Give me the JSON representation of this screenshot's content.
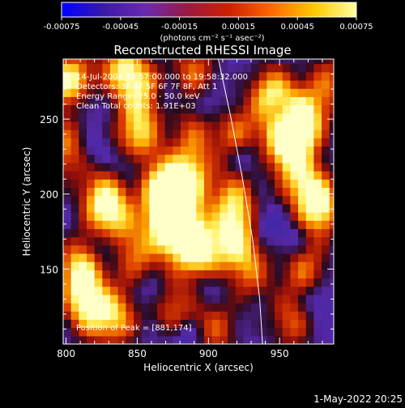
{
  "colorbar": {
    "tick_labels": [
      "-0.00075",
      "-0.00045",
      "-0.00015",
      "0.00015",
      "0.00045",
      "0.00075"
    ],
    "tick_values": [
      -0.00075,
      -0.00045,
      -0.00015,
      0.00015,
      0.00045,
      0.00075
    ],
    "range": [
      -0.00075,
      0.00075
    ],
    "unit_label": "(photons cm⁻² s⁻¹ asec⁻²)",
    "colormap": [
      "#0000ff",
      "#3a1aa8",
      "#6a2ab0",
      "#9a1a40",
      "#d02000",
      "#ff6a00",
      "#ffc800",
      "#ffffa0"
    ]
  },
  "chart_data": {
    "type": "heatmap",
    "title": "Reconstructed RHESSI Image",
    "xlabel": "Heliocentric X (arcsec)",
    "ylabel": "Heliocentric Y (arcsec)",
    "xlim": [
      798,
      988
    ],
    "ylim": [
      100,
      290
    ],
    "x_ticks": [
      800,
      850,
      900,
      950
    ],
    "y_ticks": [
      150,
      200,
      250
    ],
    "x_tick_labels": [
      "800",
      "850",
      "900",
      "950"
    ],
    "y_tick_labels": [
      "150",
      "200",
      "250"
    ],
    "info": [
      "14-Jul-2004 19:57:00.000 to 19:58:32.000",
      "Detectors: 3F 4F 5F 6F 7F 8F, Att 1",
      "Energy Range: 25.0 - 50.0 keV",
      "Clean    Total counts: 1.91E+03"
    ],
    "peak_label": "Position of Peak = [881,174]",
    "peak": [
      881,
      174
    ],
    "limb": [
      [
        907,
        290
      ],
      [
        916,
        250
      ],
      [
        924,
        210
      ],
      [
        931,
        170
      ],
      [
        936,
        130
      ],
      [
        938,
        100
      ]
    ],
    "blobs": [
      {
        "x": 803,
        "y": 275,
        "a": 0.95
      },
      {
        "x": 840,
        "y": 284,
        "a": 0.8
      },
      {
        "x": 855,
        "y": 268,
        "a": 0.6
      },
      {
        "x": 890,
        "y": 282,
        "a": 0.55
      },
      {
        "x": 850,
        "y": 240,
        "a": 0.75
      },
      {
        "x": 868,
        "y": 205,
        "a": 0.85
      },
      {
        "x": 887,
        "y": 210,
        "a": 0.8
      },
      {
        "x": 881,
        "y": 174,
        "a": 1.0
      },
      {
        "x": 872,
        "y": 185,
        "a": 0.85
      },
      {
        "x": 895,
        "y": 160,
        "a": 0.75
      },
      {
        "x": 810,
        "y": 150,
        "a": 0.85
      },
      {
        "x": 815,
        "y": 125,
        "a": 0.8
      },
      {
        "x": 835,
        "y": 118,
        "a": 0.7
      },
      {
        "x": 825,
        "y": 197,
        "a": 0.75
      },
      {
        "x": 835,
        "y": 185,
        "a": 0.55
      },
      {
        "x": 850,
        "y": 160,
        "a": 0.55
      },
      {
        "x": 905,
        "y": 110,
        "a": 0.5
      },
      {
        "x": 875,
        "y": 125,
        "a": 0.5
      },
      {
        "x": 918,
        "y": 195,
        "a": 0.7
      },
      {
        "x": 918,
        "y": 170,
        "a": 0.75
      },
      {
        "x": 930,
        "y": 148,
        "a": 0.5
      },
      {
        "x": 920,
        "y": 240,
        "a": 0.55
      },
      {
        "x": 945,
        "y": 265,
        "a": 0.9
      },
      {
        "x": 955,
        "y": 235,
        "a": 1.0
      },
      {
        "x": 968,
        "y": 250,
        "a": 0.85
      },
      {
        "x": 978,
        "y": 192,
        "a": 0.95
      },
      {
        "x": 965,
        "y": 210,
        "a": 0.6
      },
      {
        "x": 968,
        "y": 150,
        "a": 0.55
      },
      {
        "x": 958,
        "y": 115,
        "a": 0.5
      },
      {
        "x": 985,
        "y": 275,
        "a": 0.5
      },
      {
        "x": 890,
        "y": 240,
        "a": 0.45
      },
      {
        "x": 800,
        "y": 230,
        "a": 0.6
      }
    ],
    "dips": [
      {
        "x": 950,
        "y": 255,
        "a": 0.9
      },
      {
        "x": 812,
        "y": 260,
        "a": 0.7
      },
      {
        "x": 880,
        "y": 165,
        "a": 0.3
      },
      {
        "x": 845,
        "y": 220,
        "a": 0.6
      },
      {
        "x": 828,
        "y": 165,
        "a": 0.7
      },
      {
        "x": 860,
        "y": 135,
        "a": 0.6
      },
      {
        "x": 900,
        "y": 140,
        "a": 0.6
      },
      {
        "x": 925,
        "y": 225,
        "a": 0.7
      },
      {
        "x": 940,
        "y": 180,
        "a": 0.6
      },
      {
        "x": 975,
        "y": 130,
        "a": 0.7
      },
      {
        "x": 870,
        "y": 265,
        "a": 0.6
      },
      {
        "x": 900,
        "y": 260,
        "a": 0.6
      },
      {
        "x": 960,
        "y": 170,
        "a": 0.55
      },
      {
        "x": 885,
        "y": 105,
        "a": 0.6
      },
      {
        "x": 820,
        "y": 230,
        "a": 0.5
      }
    ]
  },
  "footer": {
    "date": "1-May-2022 20:25"
  }
}
